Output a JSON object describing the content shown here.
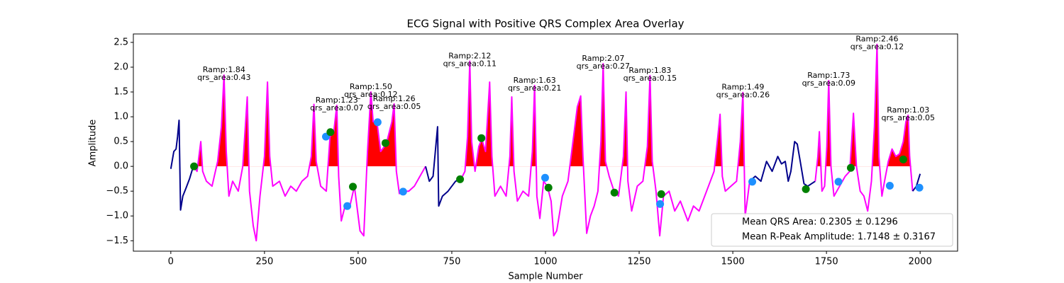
{
  "chart_data": {
    "type": "line",
    "title": "ECG Signal with Positive QRS Complex Area Overlay",
    "x_label": "Sample Number",
    "y_label": "Amplitude",
    "xlim": [
      -100,
      2100
    ],
    "ylim": [
      -1.71,
      2.67
    ],
    "xticks": [
      0,
      250,
      500,
      750,
      1000,
      1250,
      1500,
      1750,
      2000
    ],
    "yticks": [
      {
        "value": -1.5,
        "label": "−1.5"
      },
      {
        "value": -1.0,
        "label": "−1.0"
      },
      {
        "value": -0.5,
        "label": "−0.5"
      },
      {
        "value": 0.0,
        "label": "0.0"
      },
      {
        "value": 0.5,
        "label": "0.5"
      },
      {
        "value": 1.0,
        "label": "1.0"
      },
      {
        "value": 1.5,
        "label": "1.5"
      },
      {
        "value": 2.0,
        "label": "2.0"
      },
      {
        "value": 2.5,
        "label": "2.5"
      }
    ],
    "series": [
      {
        "color": "#00008b",
        "x": [
          0,
          8,
          14,
          18,
          22,
          26,
          32,
          40,
          50,
          60
        ],
        "values": [
          -0.05,
          0.3,
          0.35,
          0.6,
          0.93,
          -0.88,
          -0.6,
          -0.45,
          -0.25,
          0.0
        ]
      },
      {
        "color": "#ff00ff",
        "fill": "#ff0000",
        "x": [
          60,
          70,
          80,
          85,
          95,
          110,
          125,
          135,
          142,
          148,
          155,
          165,
          180,
          192,
          204,
          210,
          220,
          228,
          238,
          250,
          258,
          264,
          272,
          290,
          305,
          320,
          335,
          350,
          365,
          375,
          382,
          388,
          400,
          415,
          425,
          435,
          443,
          448,
          455,
          465,
          478,
          490,
          505,
          515,
          525,
          534,
          540,
          550,
          560,
          575,
          590,
          596,
          602,
          610,
          620,
          635,
          650,
          665,
          680
        ],
        "values": [
          0.0,
          -0.1,
          0.5,
          -0.1,
          -0.3,
          -0.4,
          0.1,
          0.8,
          1.84,
          0.3,
          -0.6,
          -0.3,
          -0.5,
          0.0,
          1.4,
          -0.5,
          -1.2,
          -1.5,
          -0.6,
          0.2,
          1.7,
          0.2,
          -0.4,
          -0.3,
          -0.6,
          -0.4,
          -0.5,
          -0.3,
          -0.2,
          0.2,
          1.25,
          0.1,
          -0.4,
          -0.5,
          0.6,
          0.7,
          1.23,
          -0.2,
          -1.1,
          -0.8,
          -0.8,
          -0.4,
          -1.3,
          -1.4,
          0.3,
          1.5,
          0.9,
          0.9,
          0.3,
          0.45,
          0.9,
          1.26,
          -0.1,
          -0.55,
          -0.5,
          -0.5,
          -0.4,
          -0.2,
          0.0
        ]
      },
      {
        "color": "#00008b",
        "x": [
          680,
          690,
          700,
          712,
          715,
          725,
          740,
          760,
          775
        ],
        "values": [
          0.0,
          -0.3,
          -0.2,
          0.8,
          -0.8,
          -0.6,
          -0.5,
          -0.3,
          -0.25
        ]
      },
      {
        "color": "#ff00ff",
        "fill": "#ff0000",
        "x": [
          775,
          785,
          792,
          798,
          803,
          812,
          822,
          830,
          840,
          851,
          857,
          865,
          880,
          895,
          905,
          910,
          916,
          925,
          940,
          955,
          965,
          971,
          977,
          985,
          995,
          1005,
          1015,
          1022,
          1030,
          1045,
          1060,
          1075,
          1085,
          1094,
          1100,
          1110,
          1120,
          1130,
          1140,
          1148,
          1154,
          1160,
          1170,
          1183,
          1195,
          1208,
          1215,
          1220,
          1230,
          1245,
          1260,
          1272,
          1279,
          1285,
          1295,
          1305,
          1315,
          1330,
          1345,
          1360,
          1380,
          1395,
          1410,
          1430,
          1450,
          1460,
          1466,
          1472,
          1480,
          1495,
          1510,
          1520,
          1527,
          1533,
          1540,
          1545
        ],
        "values": [
          -0.25,
          -0.1,
          0.6,
          2.12,
          0.5,
          -0.1,
          0.4,
          0.55,
          0.3,
          1.7,
          0.2,
          -0.6,
          -0.4,
          -0.6,
          0.2,
          1.4,
          -0.1,
          -0.7,
          -0.5,
          -0.6,
          0.3,
          1.63,
          -0.6,
          -1.05,
          -0.3,
          -0.4,
          -0.7,
          -1.4,
          -1.3,
          -0.6,
          -0.3,
          0.6,
          1.2,
          1.42,
          0.2,
          -1.35,
          -1.0,
          -0.8,
          -0.5,
          0.5,
          2.07,
          0.1,
          -0.2,
          -0.5,
          -0.6,
          0.2,
          1.5,
          -0.3,
          -0.9,
          -0.4,
          -0.3,
          0.4,
          1.83,
          0.1,
          -0.5,
          -1.4,
          -0.6,
          -0.5,
          -0.9,
          -0.7,
          -1.1,
          -0.8,
          -0.9,
          -0.5,
          -0.1,
          0.6,
          1.05,
          -0.2,
          -0.5,
          -0.4,
          -0.3,
          0.5,
          1.49,
          -1.0,
          -0.6,
          -0.3
        ]
      },
      {
        "color": "#00008b",
        "x": [
          1545,
          1560,
          1575,
          1590,
          1605,
          1620,
          1630,
          1640,
          1648,
          1655,
          1665,
          1672,
          1680,
          1690,
          1700,
          1720
        ],
        "values": [
          -0.3,
          -0.2,
          -0.3,
          0.1,
          -0.1,
          0.2,
          0.05,
          0.1,
          -0.3,
          -0.1,
          0.5,
          0.45,
          0.1,
          -0.35,
          -0.4,
          -0.3
        ]
      },
      {
        "color": "#ff00ff",
        "fill": "#ff0000",
        "x": [
          1720,
          1727,
          1731,
          1738,
          1745,
          1751,
          1756,
          1762,
          1770,
          1785,
          1800,
          1812,
          1818,
          1822,
          1830,
          1840,
          1850,
          1860,
          1870,
          1878,
          1885,
          1890,
          1898,
          1905,
          1915,
          1925,
          1935,
          1945,
          1955,
          1962,
          1968,
          1972,
          1980
        ],
        "values": [
          -0.3,
          0.2,
          0.7,
          -0.5,
          -0.4,
          0.4,
          1.73,
          0.0,
          -0.6,
          -0.4,
          -0.2,
          -0.1,
          0.6,
          1.07,
          0.0,
          -0.5,
          -0.6,
          -0.9,
          -0.3,
          0.8,
          2.46,
          0.2,
          -0.6,
          -0.3,
          0.1,
          0.35,
          0.2,
          0.25,
          0.5,
          0.9,
          1.03,
          0.2,
          -0.5
        ]
      },
      {
        "color": "#00008b",
        "x": [
          1980,
          1990,
          2000
        ],
        "values": [
          -0.5,
          -0.4,
          -0.15
        ]
      }
    ],
    "markers": [
      {
        "color": "#1e90ff",
        "x": [
          414,
          471,
          552,
          620,
          999,
          1306,
          1552,
          1782,
          1919,
          1998
        ],
        "values": [
          0.6,
          -0.8,
          0.89,
          -0.51,
          -0.23,
          -0.76,
          -0.31,
          -0.31,
          -0.39,
          -0.43
        ]
      },
      {
        "color": "#008000",
        "x": [
          62,
          426,
          486,
          573,
          772,
          829,
          1008,
          1184,
          1309,
          1695,
          1815,
          1955
        ],
        "values": [
          0.0,
          0.69,
          -0.41,
          0.47,
          -0.26,
          0.57,
          -0.43,
          -0.53,
          -0.56,
          -0.46,
          -0.03,
          0.14
        ]
      }
    ],
    "annotations": [
      {
        "x": 142,
        "y": 1.84,
        "text": [
          "Ramp:1.84",
          "qrs_area:0.43"
        ]
      },
      {
        "x": 443,
        "y": 1.23,
        "text": [
          "Ramp:1.23",
          "qrs_area:0.07"
        ]
      },
      {
        "x": 534,
        "y": 1.5,
        "text": [
          "Ramp:1.50",
          "qrs_area:0.12"
        ]
      },
      {
        "x": 596,
        "y": 1.26,
        "text": [
          "Ramp:1.26",
          "qrs_area:0.05"
        ]
      },
      {
        "x": 798,
        "y": 2.12,
        "text": [
          "Ramp:2.12",
          "qrs_area:0.11"
        ]
      },
      {
        "x": 971,
        "y": 1.63,
        "text": [
          "Ramp:1.63",
          "qrs_area:0.21"
        ]
      },
      {
        "x": 1154,
        "y": 2.07,
        "text": [
          "Ramp:2.07",
          "qrs_area:0.27"
        ]
      },
      {
        "x": 1279,
        "y": 1.83,
        "text": [
          "Ramp:1.83",
          "qrs_area:0.15"
        ]
      },
      {
        "x": 1527,
        "y": 1.49,
        "text": [
          "Ramp:1.49",
          "qrs_area:0.26"
        ]
      },
      {
        "x": 1756,
        "y": 1.73,
        "text": [
          "Ramp:1.73",
          "qrs_area:0.09"
        ]
      },
      {
        "x": 1885,
        "y": 2.46,
        "text": [
          "Ramp:2.46",
          "qrs_area:0.12"
        ]
      },
      {
        "x": 1968,
        "y": 1.03,
        "text": [
          "Ramp:1.03",
          "qrs_area:0.05"
        ]
      }
    ],
    "legend_texts": [
      "Mean QRS Area: 0.2305 ± 0.1296",
      "Mean R-Peak Amplitude: 1.7148 ± 0.3167"
    ],
    "legend_position": "lower right"
  }
}
